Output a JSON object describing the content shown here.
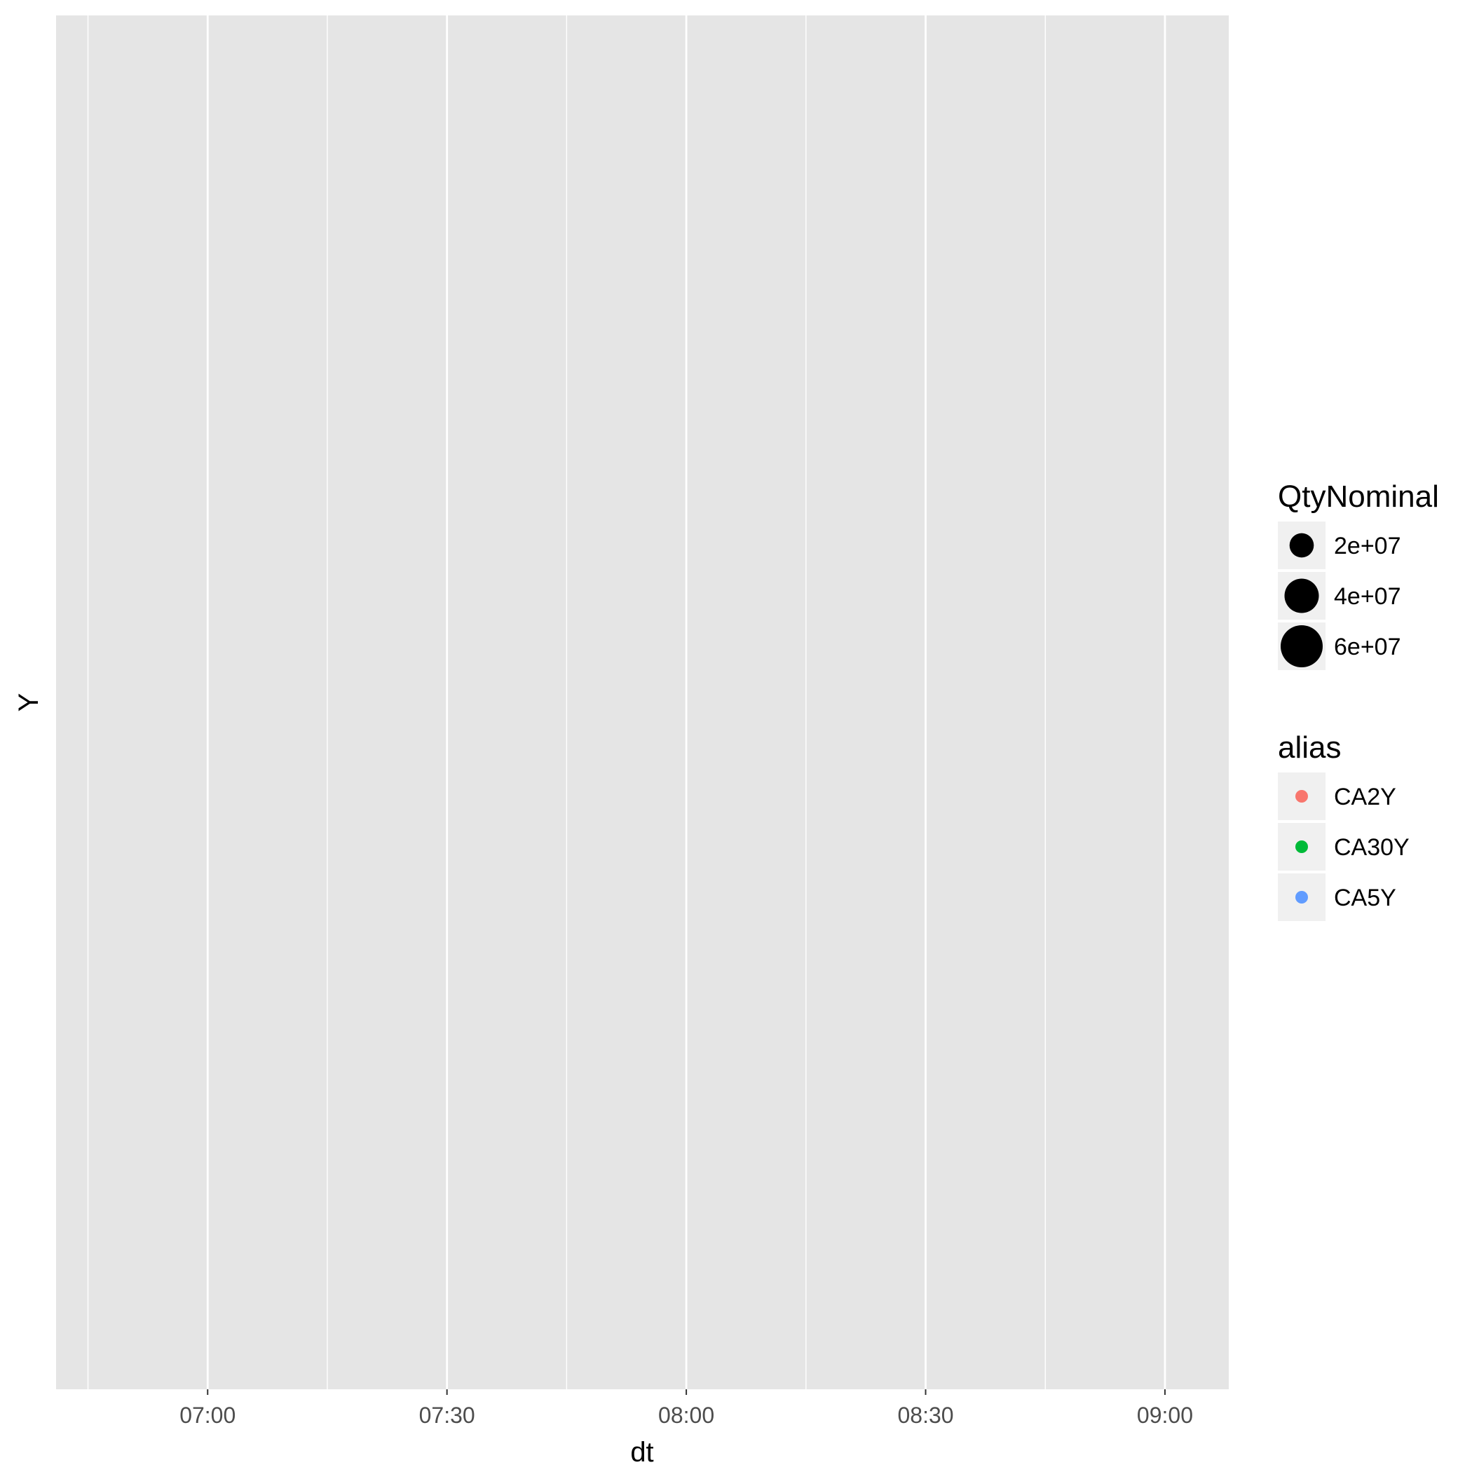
{
  "chart_data": {
    "type": "scatter",
    "title": "",
    "xlabel": "dt",
    "ylabel": "Y",
    "x_ticks": [
      "07:00",
      "07:30",
      "08:00",
      "08:30",
      "09:00"
    ],
    "xlim": [
      "06:41",
      "09:08"
    ],
    "grid": true,
    "series": [],
    "legends": [
      {
        "title": "QtyNominal",
        "kind": "size",
        "entries": [
          {
            "label": "2e+07",
            "value": 20000000
          },
          {
            "label": "4e+07",
            "value": 40000000
          },
          {
            "label": "6e+07",
            "value": 60000000
          }
        ]
      },
      {
        "title": "alias",
        "kind": "color",
        "entries": [
          {
            "label": "CA2Y",
            "color": "#F8766D"
          },
          {
            "label": "CA30Y",
            "color": "#00BA38"
          },
          {
            "label": "CA5Y",
            "color": "#619CFF"
          }
        ]
      }
    ],
    "legend_position": "right",
    "colors": {
      "panel_background": "#E5E5E5",
      "grid": "#FFFFFF",
      "legend_key_background": "#F0F0F0",
      "size_key_point": "#000000"
    }
  }
}
